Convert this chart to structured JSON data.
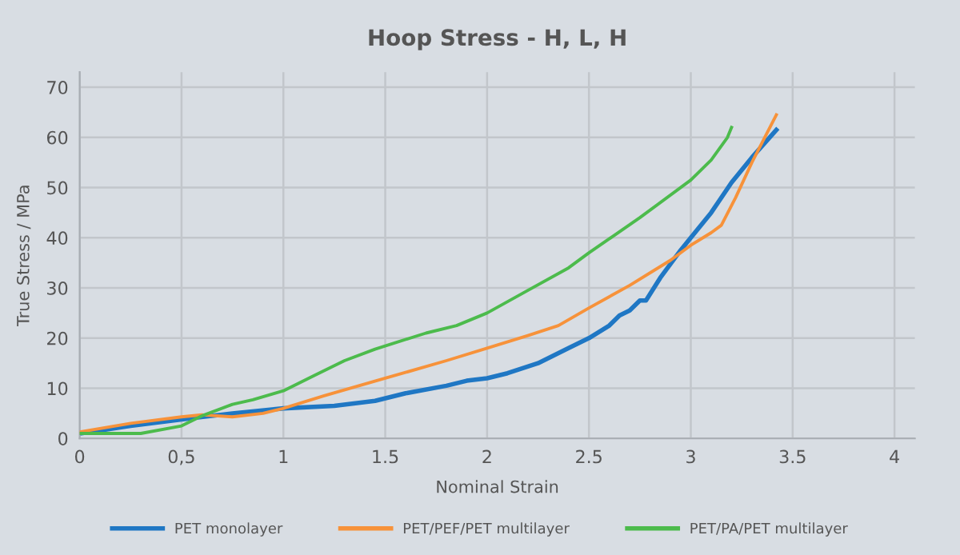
{
  "chart_data": {
    "type": "line",
    "title": "Hoop Stress - H, L, H",
    "xlabel": "Nominal Strain",
    "ylabel": "True Stress / MPa",
    "xlim": [
      0,
      4.1
    ],
    "ylim": [
      0,
      73
    ],
    "xticks": [
      0,
      {
        "value": 0.5,
        "label": "0,5"
      },
      1,
      1.5,
      2,
      2.5,
      3,
      3.5,
      4
    ],
    "yticks": [
      0,
      10,
      20,
      30,
      40,
      50,
      60,
      70
    ],
    "grid": true,
    "legend": "bottom",
    "marker": "none",
    "line_style": "solid",
    "series": [
      {
        "name": "PET monolayer",
        "color": "#1f77c4",
        "x": [
          0,
          0.25,
          0.5,
          0.75,
          1,
          1.25,
          1.45,
          1.6,
          1.8,
          1.9,
          2,
          2.1,
          2.25,
          2.4,
          2.5,
          2.6,
          2.65,
          2.7,
          2.75,
          2.78,
          2.85,
          2.95,
          3,
          3.1,
          3.2,
          3.3,
          3.42
        ],
        "values": [
          1,
          2.5,
          3.8,
          5,
          6,
          6.5,
          7.5,
          9,
          10.5,
          11.5,
          12,
          13,
          15,
          18,
          20,
          22.5,
          24.5,
          25.5,
          27.5,
          27.5,
          32,
          37.5,
          40,
          45,
          51,
          56,
          61.5
        ]
      },
      {
        "name": "PET/PEF/PET multilayer",
        "color": "#f7923a",
        "x": [
          0,
          0.25,
          0.5,
          0.6,
          0.75,
          0.9,
          1,
          1.2,
          1.5,
          1.8,
          2,
          2.2,
          2.35,
          2.5,
          2.7,
          2.9,
          3,
          3.1,
          3.15,
          3.22,
          3.3,
          3.42
        ],
        "values": [
          1.3,
          3,
          4.3,
          4.7,
          4.3,
          5,
          6,
          8.5,
          12,
          15.5,
          18,
          20.5,
          22.5,
          26,
          30.5,
          35.5,
          38.5,
          41,
          42.5,
          48,
          55,
          64.5
        ]
      },
      {
        "name": "PET/PA/PET multilayer",
        "color": "#4cbb4c",
        "x": [
          0,
          0.3,
          0.5,
          0.6,
          0.75,
          0.85,
          1,
          1.15,
          1.3,
          1.45,
          1.7,
          1.85,
          2,
          2.2,
          2.4,
          2.5,
          2.75,
          3,
          3.1,
          3.18,
          3.2
        ],
        "values": [
          1,
          1,
          2.5,
          4.5,
          6.8,
          7.7,
          9.5,
          12.5,
          15.5,
          17.8,
          21,
          22.5,
          25,
          29.5,
          34,
          37,
          44,
          51.5,
          55.5,
          60,
          62
        ]
      }
    ]
  }
}
